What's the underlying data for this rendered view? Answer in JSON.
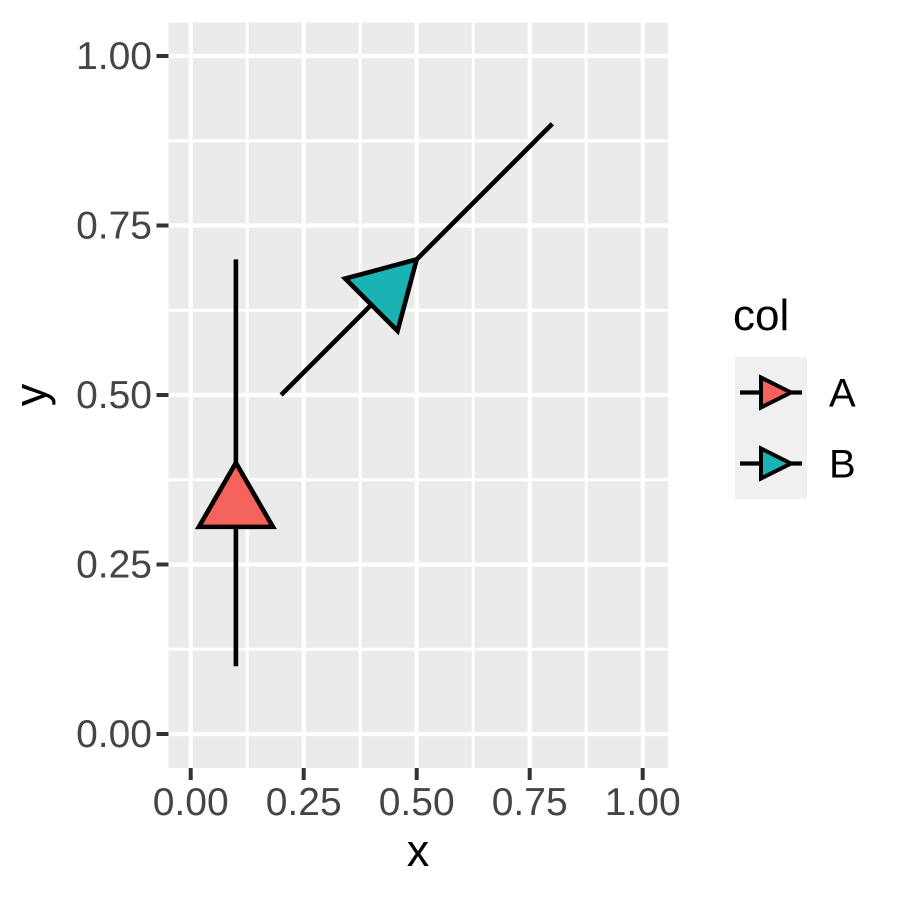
{
  "chart_data": {
    "type": "segment",
    "title": "",
    "xlabel": "x",
    "ylabel": "y",
    "xlim": [
      0,
      1
    ],
    "ylim": [
      0,
      1
    ],
    "grid": "on",
    "x_ticks": {
      "values": [
        0,
        0.25,
        0.5,
        0.75,
        1.0
      ],
      "labels": [
        "0.00",
        "0.25",
        "0.50",
        "0.75",
        "1.00"
      ]
    },
    "y_ticks": {
      "values": [
        0,
        0.25,
        0.5,
        0.75,
        1.0
      ],
      "labels": [
        "0.00",
        "0.25",
        "0.50",
        "0.75",
        "1.00"
      ]
    },
    "minor_tick_values": [
      0.125,
      0.375,
      0.625,
      0.875
    ],
    "series": [
      {
        "name": "A",
        "color": "#F4625C",
        "x": 0.1,
        "y": 0.1,
        "xend": 0.1,
        "yend": 0.7,
        "arrow": {
          "type": "closed",
          "position": "midpoint",
          "angle_deg": 30
        }
      },
      {
        "name": "B",
        "color": "#1AB2B3",
        "x": 0.2,
        "y": 0.5,
        "xend": 0.8,
        "yend": 0.9,
        "arrow": {
          "type": "closed",
          "position": "midpoint",
          "angle_deg": 30
        }
      }
    ],
    "legend": {
      "title": "col",
      "position": "right",
      "entries": [
        {
          "label": "A",
          "color": "#F4625C"
        },
        {
          "label": "B",
          "color": "#1AB2B3"
        }
      ]
    }
  },
  "style": {
    "figure_bg": "#FFFFFF",
    "panel_bg": "#EBEBEB",
    "grid_color": "#FFFFFF",
    "tick_mark_color": "#333333",
    "tick_label_color": "#454545",
    "axis_title_color": "#000000",
    "line_color": "#000000",
    "legend_key_bg": "#F0F0F0",
    "legend_text_color": "#000000"
  }
}
